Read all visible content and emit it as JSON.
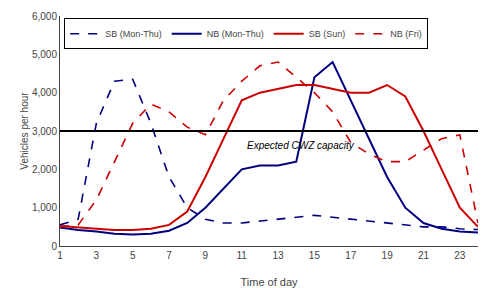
{
  "chart_data": {
    "type": "line",
    "x": [
      1,
      2,
      3,
      4,
      5,
      6,
      7,
      8,
      9,
      10,
      11,
      12,
      13,
      14,
      15,
      16,
      17,
      18,
      19,
      20,
      21,
      22,
      23,
      24
    ],
    "series": [
      {
        "name": "SB (Mon-Thu)",
        "color": "#00007F",
        "line_style": "dashed",
        "values": [
          550,
          700,
          3200,
          4300,
          4350,
          3200,
          1800,
          1000,
          700,
          600,
          600,
          650,
          700,
          750,
          800,
          750,
          700,
          650,
          600,
          550,
          500,
          500,
          450,
          430
        ]
      },
      {
        "name": "NB (Mon-Thu)",
        "color": "#00007F",
        "line_style": "solid",
        "values": [
          480,
          420,
          380,
          320,
          300,
          320,
          400,
          600,
          1000,
          1500,
          2000,
          2100,
          2100,
          2200,
          4400,
          4800,
          3800,
          2800,
          1800,
          1000,
          600,
          450,
          380,
          350
        ]
      },
      {
        "name": "SB (Sun)",
        "color": "#CC0000",
        "line_style": "solid",
        "values": [
          520,
          480,
          450,
          420,
          420,
          450,
          550,
          900,
          1800,
          2800,
          3800,
          4000,
          4100,
          4200,
          4200,
          4100,
          4000,
          4000,
          4200,
          3900,
          3000,
          2000,
          1000,
          500
        ]
      },
      {
        "name": "NB (Fri)",
        "color": "#CC0000",
        "line_style": "dashed",
        "values": [
          500,
          550,
          1200,
          2200,
          3200,
          3700,
          3500,
          3100,
          2900,
          3800,
          4300,
          4700,
          4800,
          4400,
          4000,
          3500,
          2700,
          2400,
          2200,
          2200,
          2500,
          2800,
          2900,
          600
        ]
      }
    ],
    "hlines": [
      {
        "y": 3000,
        "color": "#000000"
      }
    ],
    "annotations": [
      {
        "text": "Expected CWZ capacity",
        "x": 11.2,
        "y": 2820
      }
    ],
    "xlabel": "Time of day",
    "ylabel": "Vehicles per hour",
    "xlim": [
      1,
      24
    ],
    "ylim": [
      0,
      6000
    ],
    "xticks": [
      1,
      3,
      5,
      7,
      9,
      11,
      13,
      15,
      17,
      19,
      21,
      23
    ],
    "yticks": [
      0,
      {
        "value": 1000,
        "label": "1,000"
      },
      {
        "value": 2000,
        "label": "2,000"
      },
      {
        "value": 3000,
        "label": "3,000"
      },
      {
        "value": 4000,
        "label": "4,000"
      },
      {
        "value": 5000,
        "label": "5,000"
      },
      {
        "value": 6000,
        "label": "6,000"
      }
    ],
    "grid": false,
    "legend": "upper left"
  }
}
